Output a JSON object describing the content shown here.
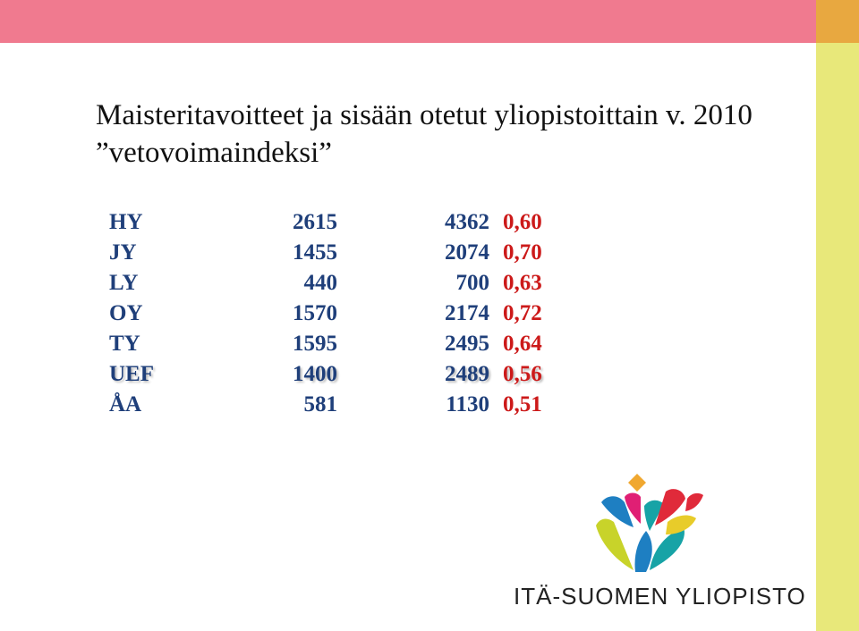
{
  "slide": {
    "title_line1": "Maisteritavoitteet ja sisään otetut yliopistoittain v. 2010",
    "title_line2": "”vetovoimaindeksi”"
  },
  "table": {
    "rows": [
      {
        "name": "HY",
        "a": "2615",
        "b": "4362",
        "c": "0,60"
      },
      {
        "name": "JY",
        "a": "1455",
        "b": "2074",
        "c": "0,70"
      },
      {
        "name": "LY",
        "a": "440",
        "b": "700",
        "c": "0,63"
      },
      {
        "name": "OY",
        "a": "1570",
        "b": "2174",
        "c": "0,72"
      },
      {
        "name": "TY",
        "a": "1595",
        "b": "2495",
        "c": "0,64"
      },
      {
        "name": "UEF",
        "a": "1400",
        "b": "2489",
        "c": "0,56"
      },
      {
        "name": "ÅA",
        "a": "581",
        "b": "1130",
        "c": "0,51"
      }
    ]
  },
  "logo": {
    "icon": "uef-tree-logo-icon",
    "text": "ITÄ-SUOMEN YLIOPISTO"
  },
  "colors": {
    "top_band": "#f07a8f",
    "corner": "#e8a840",
    "side_bar": "#e8e87a",
    "table_text": "#1f3f7a",
    "index_text": "#cc1a1a"
  }
}
